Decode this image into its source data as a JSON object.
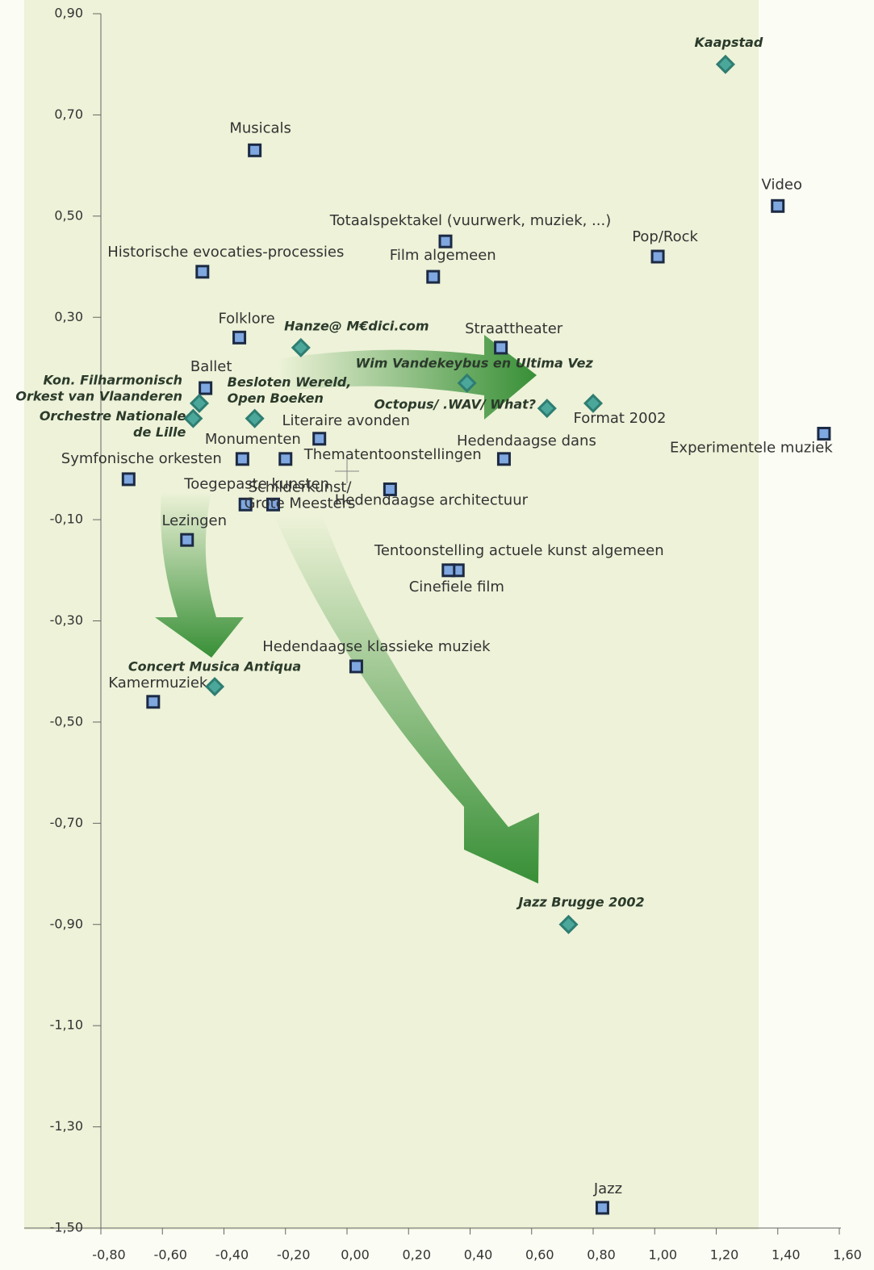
{
  "chart_data": {
    "type": "scatter",
    "xlim": [
      -0.8,
      1.6
    ],
    "ylim": [
      -1.5,
      0.9
    ],
    "xticks": [
      {
        "value": -0.8,
        "label": "-0,80"
      },
      {
        "value": -0.6,
        "label": "-0,60"
      },
      {
        "value": -0.4,
        "label": "-0,40"
      },
      {
        "value": -0.2,
        "label": "-0,20"
      },
      {
        "value": 0,
        "label": "0,00"
      },
      {
        "value": 0.2,
        "label": "0,20"
      },
      {
        "value": 0.4,
        "label": "0,40"
      },
      {
        "value": 0.6,
        "label": "0,60"
      },
      {
        "value": 0.8,
        "label": "0,80"
      },
      {
        "value": 1,
        "label": "1,00"
      },
      {
        "value": 1.2,
        "label": "1,20"
      },
      {
        "value": 1.4,
        "label": "1,40"
      },
      {
        "value": 1.6,
        "label": "1,60"
      }
    ],
    "yticks": [
      {
        "value": 0.9,
        "label": "0,90"
      },
      {
        "value": 0.7,
        "label": "0,70"
      },
      {
        "value": 0.5,
        "label": "0,50"
      },
      {
        "value": 0.3,
        "label": "0,30"
      },
      {
        "value": -0.1,
        "label": "-0,10"
      },
      {
        "value": -0.3,
        "label": "-0,30"
      },
      {
        "value": -0.5,
        "label": "-0,50"
      },
      {
        "value": -0.7,
        "label": "-0,70"
      },
      {
        "value": -0.9,
        "label": "-0,90"
      },
      {
        "value": -1.1,
        "label": "-1,10"
      },
      {
        "value": -1.3,
        "label": "-1,30"
      },
      {
        "value": -1.5,
        "label": "-1,50"
      }
    ],
    "series": [
      {
        "marker": "square",
        "color": "#7fa7e0",
        "x": [
          -0.3,
          -0.47,
          -0.35,
          -0.46,
          0.32,
          0.28,
          0.5,
          1.4,
          1.01,
          1.55,
          -0.09,
          -0.34,
          -0.2,
          0.51,
          -0.71,
          -0.33,
          -0.24,
          0.14,
          -0.52,
          0.36,
          0.33,
          0.03,
          -0.63,
          0.83
        ],
        "values": [
          0.63,
          0.39,
          0.26,
          0.16,
          0.45,
          0.38,
          0.24,
          0.52,
          0.42,
          0.07,
          0.06,
          0.02,
          0.02,
          0.02,
          -0.02,
          -0.07,
          -0.07,
          -0.04,
          -0.14,
          -0.2,
          -0.2,
          -0.39,
          -0.46,
          -1.46
        ],
        "labels": [
          "Musicals",
          "Historische evocaties-processies",
          "Folklore",
          "Ballet",
          "Totaalspektakel (vuurwerk, muziek, ...)",
          "Film algemeen",
          "Straattheater",
          "Video",
          "Pop/Rock",
          "Experimentele muziek",
          "Literaire avonden",
          "Monumenten",
          "Thematentoonstellingen",
          "Hedendaagse dans",
          "Symfonische orkesten",
          "Toegepaste kunsten",
          [
            "Schilderkunst/",
            "Grote Meesters"
          ],
          "Hedendaagse architectuur",
          "Lezingen",
          "Tentoonstelling actuele kunst algemeen",
          "Cinefiele film",
          "Hedendaagse klassieke muziek",
          "Kamermuziek",
          "Jazz"
        ]
      },
      {
        "marker": "diamond",
        "color": "#4aa79a",
        "x": [
          1.23,
          -0.15,
          0.39,
          -0.48,
          -0.5,
          -0.3,
          0.65,
          0.8,
          -0.43,
          0.72
        ],
        "values": [
          0.8,
          0.24,
          0.17,
          0.13,
          0.1,
          0.1,
          0.12,
          0.13,
          -0.43,
          -0.9
        ],
        "labels": [
          "Kaapstad",
          "Hanze@ M€dici.com",
          "Wim Vandekeybus en Ultima Vez",
          [
            "Kon. Filharmonisch",
            "Orkest van Vlaanderen"
          ],
          [
            "Orchestre Nationale",
            "de Lille"
          ],
          [
            "Besloten Wereld,",
            "Open Boeken"
          ],
          "Octopus/ .WAV/ What?",
          "Format 2002",
          "Concert Musica Antiqua",
          "Jazz Brugge 2002"
        ]
      }
    ]
  }
}
